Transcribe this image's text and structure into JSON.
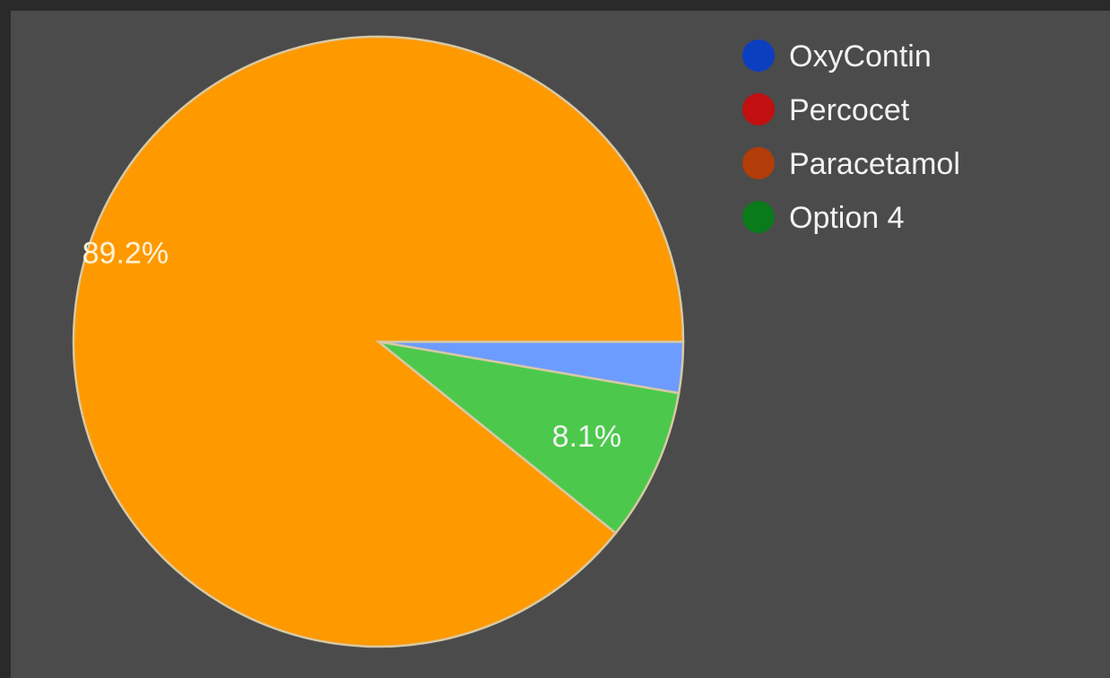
{
  "chart_data": {
    "type": "pie",
    "title": "",
    "slices": [
      {
        "label": "OxyContin",
        "value": 2.7,
        "color": "#6c9cff",
        "data_label": ""
      },
      {
        "label": "Percocet",
        "value": 8.1,
        "color": "#4cc94c",
        "data_label": "8.1%"
      },
      {
        "label": "Paracetamol",
        "value": 0,
        "color": "#ff9900",
        "data_label": ""
      },
      {
        "label": "Option 4",
        "value": 89.2,
        "color": "#ff9900",
        "data_label": "89.2%"
      }
    ],
    "legend": {
      "placement": "top-right",
      "entries": [
        {
          "label": "OxyContin",
          "color": "#0b3fc0"
        },
        {
          "label": "Percocet",
          "color": "#c20f0f"
        },
        {
          "label": "Paracetamol",
          "color": "#b23d08"
        },
        {
          "label": "Option 4",
          "color": "#0a7a1a"
        }
      ]
    }
  }
}
